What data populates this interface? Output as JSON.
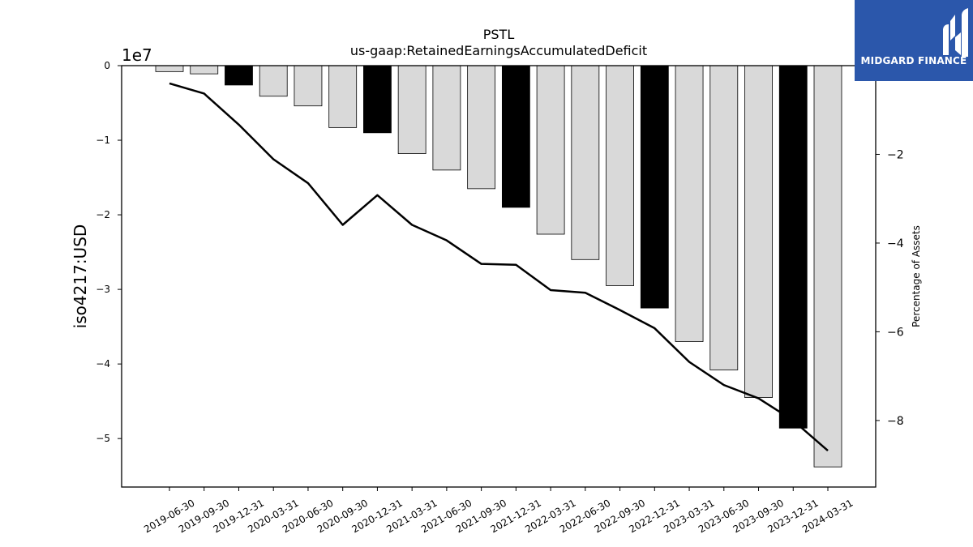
{
  "logo": {
    "text": "MIDGARD FINANCE",
    "icon": "midgard-logo-icon",
    "color": "#2b57ab"
  },
  "chart_data": {
    "type": "bar",
    "title": "PSTL",
    "subtitle": "us-gaap:RetainedEarningsAccumulatedDeficit",
    "ylabel": "iso4217:USD",
    "y2label": "Percentage of Assets",
    "y_offset_text": "1e7",
    "ylim": [
      -5.65,
      0
    ],
    "y_ticks": [
      0,
      -1,
      -2,
      -3,
      -4,
      -5
    ],
    "y2lim": [
      -9.5,
      -0.0
    ],
    "y2_ticks": [
      -2,
      -4,
      -6,
      -8
    ],
    "categories": [
      "2019-06-30",
      "2019-09-30",
      "2019-12-31",
      "2020-03-31",
      "2020-06-30",
      "2020-09-30",
      "2020-12-31",
      "2021-03-31",
      "2021-06-30",
      "2021-09-30",
      "2021-12-31",
      "2022-03-31",
      "2022-06-30",
      "2022-09-30",
      "2022-12-31",
      "2023-03-31",
      "2023-06-30",
      "2023-09-30",
      "2023-12-31",
      "2024-03-31"
    ],
    "series": [
      {
        "type": "bar",
        "values": [
          -0.08,
          -0.11,
          -0.26,
          -0.41,
          -0.54,
          -0.83,
          -0.9,
          -1.18,
          -1.4,
          -1.65,
          -1.9,
          -2.26,
          -2.6,
          -2.95,
          -3.25,
          -3.7,
          -4.08,
          -4.45,
          -4.86,
          -5.38
        ],
        "highlight": [
          false,
          false,
          true,
          false,
          false,
          false,
          true,
          false,
          false,
          false,
          true,
          false,
          false,
          false,
          true,
          false,
          false,
          false,
          true,
          false
        ],
        "color": "#d9d9d9",
        "highlight_color": "#000000"
      },
      {
        "type": "line",
        "axis": "right",
        "values": [
          -0.4,
          -0.63,
          -1.33,
          -2.11,
          -2.65,
          -3.59,
          -2.92,
          -3.59,
          -3.94,
          -4.47,
          -4.49,
          -5.06,
          -5.12,
          -5.51,
          -5.92,
          -6.68,
          -7.2,
          -7.5,
          -8.0,
          -8.68
        ],
        "color": "#000000"
      }
    ]
  }
}
